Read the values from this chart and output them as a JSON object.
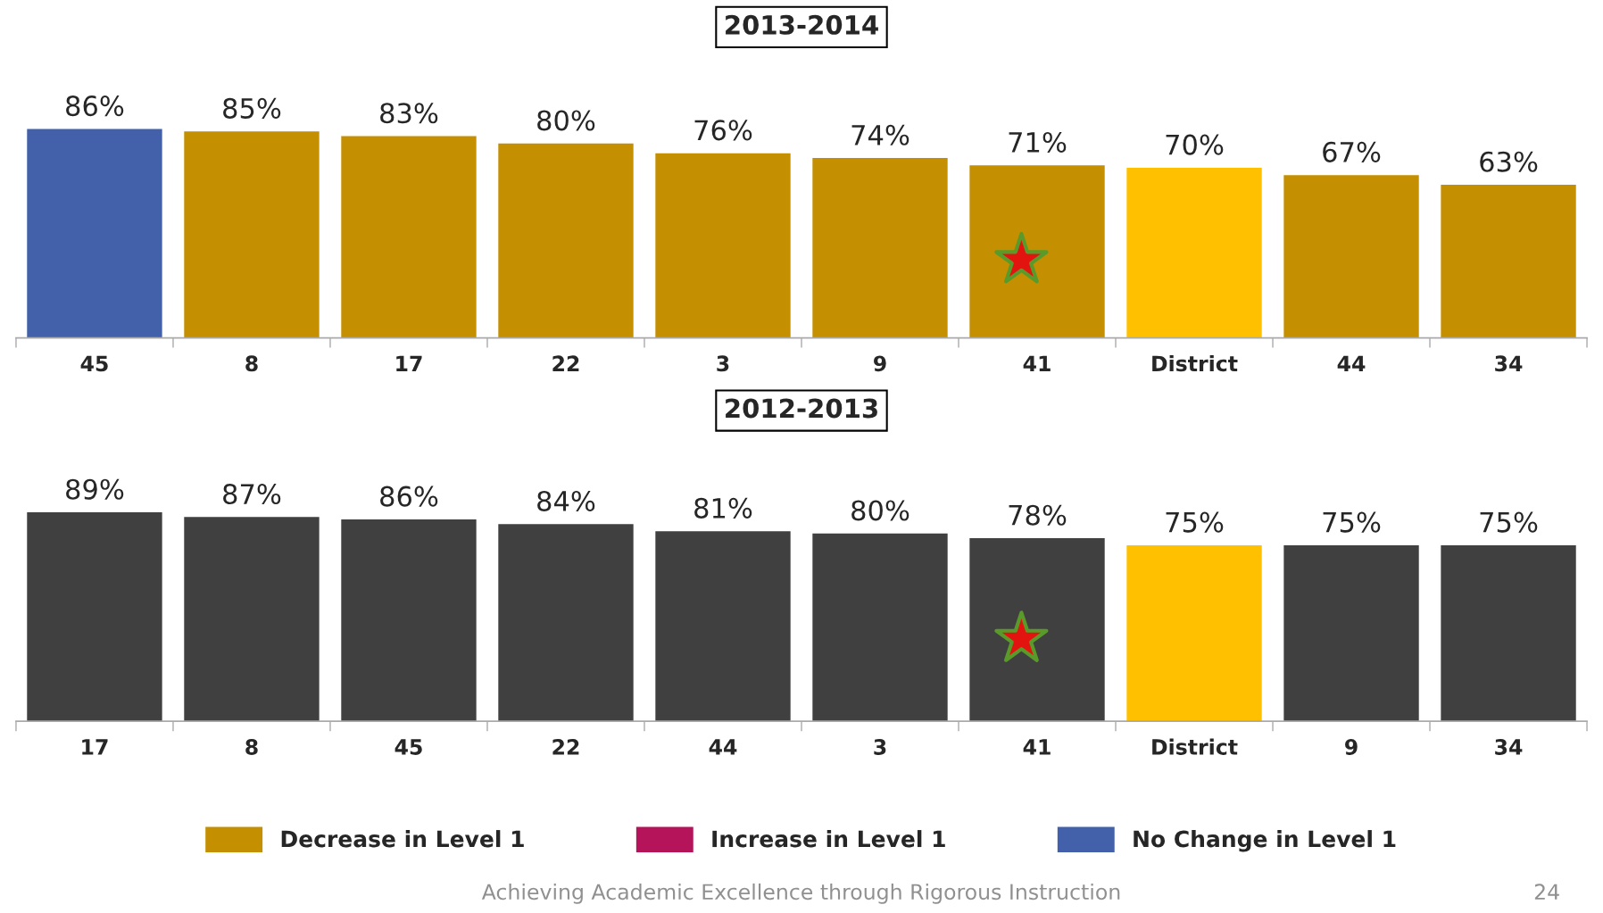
{
  "chart_data": [
    {
      "type": "bar",
      "title": "2013-2014",
      "categories": [
        "45",
        "8",
        "17",
        "22",
        "3",
        "9",
        "41",
        "District",
        "44",
        "34"
      ],
      "legend": "bottom",
      "series": [
        {
          "name": "Decrease in Level 1",
          "color": "#c48f00",
          "values": [
            null,
            85,
            83,
            80,
            76,
            74,
            71,
            null,
            67,
            63
          ],
          "value_labels": [
            null,
            "85%",
            "83%",
            "80%",
            "76%",
            "74%",
            "71%",
            null,
            "67%",
            "63%"
          ]
        },
        {
          "name": "Increase in Level 1",
          "color": "#b5135a",
          "values": [
            null,
            null,
            null,
            null,
            null,
            null,
            null,
            null,
            null,
            null
          ],
          "value_labels": [
            null,
            null,
            null,
            null,
            null,
            null,
            null,
            null,
            null,
            null
          ]
        },
        {
          "name": "No Change in Level 1",
          "color": "#4361ab",
          "values": [
            86,
            null,
            null,
            null,
            null,
            null,
            null,
            null,
            null,
            null
          ],
          "value_labels": [
            "86%",
            null,
            null,
            null,
            null,
            null,
            null,
            null,
            null,
            null
          ]
        },
        {
          "color": "#ffc000",
          "values": [
            null,
            null,
            null,
            null,
            null,
            null,
            null,
            70,
            null,
            null
          ],
          "value_labels": [
            null,
            null,
            null,
            null,
            null,
            null,
            null,
            "70%",
            null,
            null
          ]
        }
      ]
    },
    {
      "type": "bar",
      "title": "2012-2013",
      "categories": [
        "17",
        "8",
        "45",
        "22",
        "44",
        "3",
        "41",
        "District",
        "9",
        "34"
      ],
      "annotations": [
        "Achieving Academic Excellence through Rigorous Instruction",
        "24"
      ],
      "series": [
        {
          "color": "#404040",
          "values": [
            89,
            87,
            86,
            84,
            81,
            80,
            78,
            null,
            75,
            75
          ],
          "value_labels": [
            "89%",
            "87%",
            "86%",
            "84%",
            "81%",
            "80%",
            "78%",
            null,
            "75%",
            "75%"
          ]
        },
        {
          "color": "#ffc000",
          "values": [
            null,
            null,
            null,
            null,
            null,
            null,
            null,
            75,
            null,
            null
          ],
          "value_labels": [
            null,
            null,
            null,
            null,
            null,
            null,
            null,
            "75%",
            null,
            null
          ]
        }
      ]
    }
  ]
}
